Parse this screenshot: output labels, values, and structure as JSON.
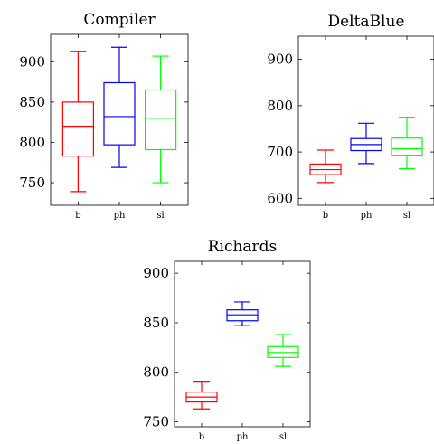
{
  "chart_data": [
    {
      "type": "box",
      "title": "Compiler",
      "xlabel": "",
      "ylabel": "",
      "categories": [
        "b",
        "ph",
        "sl"
      ],
      "ylim": [
        722,
        934
      ],
      "yticks": [
        750,
        800,
        850,
        900
      ],
      "series": [
        {
          "category": "b",
          "color": "#ff0000",
          "min": 739,
          "q1": 783,
          "median": 820,
          "q3": 850,
          "max": 913
        },
        {
          "category": "ph",
          "color": "#0000ff",
          "min": 769,
          "q1": 797,
          "median": 832,
          "q3": 874,
          "max": 918
        },
        {
          "category": "sl",
          "color": "#00ff00",
          "min": 750,
          "q1": 791,
          "median": 830,
          "q3": 865,
          "max": 907
        }
      ]
    },
    {
      "type": "box",
      "title": "DeltaBlue",
      "xlabel": "",
      "ylabel": "",
      "categories": [
        "b",
        "ph",
        "sl"
      ],
      "ylim": [
        585,
        950
      ],
      "yticks": [
        600,
        700,
        800,
        900
      ],
      "series": [
        {
          "category": "b",
          "color": "#ff0000",
          "min": 634,
          "q1": 651,
          "median": 662,
          "q3": 674,
          "max": 704
        },
        {
          "category": "ph",
          "color": "#0000ff",
          "min": 675,
          "q1": 703,
          "median": 716,
          "q3": 729,
          "max": 762
        },
        {
          "category": "sl",
          "color": "#00ff00",
          "min": 664,
          "q1": 693,
          "median": 707,
          "q3": 730,
          "max": 775
        }
      ]
    },
    {
      "type": "box",
      "title": "Richards",
      "xlabel": "",
      "ylabel": "",
      "categories": [
        "b",
        "ph",
        "sl"
      ],
      "ylim": [
        745,
        912
      ],
      "yticks": [
        750,
        800,
        850,
        900
      ],
      "series": [
        {
          "category": "b",
          "color": "#ff0000",
          "min": 763,
          "q1": 770,
          "median": 775,
          "q3": 780,
          "max": 791
        },
        {
          "category": "ph",
          "color": "#0000ff",
          "min": 847,
          "q1": 852,
          "median": 858,
          "q3": 863,
          "max": 871
        },
        {
          "category": "sl",
          "color": "#00ff00",
          "min": 806,
          "q1": 815,
          "median": 820,
          "q3": 826,
          "max": 838
        }
      ]
    }
  ]
}
